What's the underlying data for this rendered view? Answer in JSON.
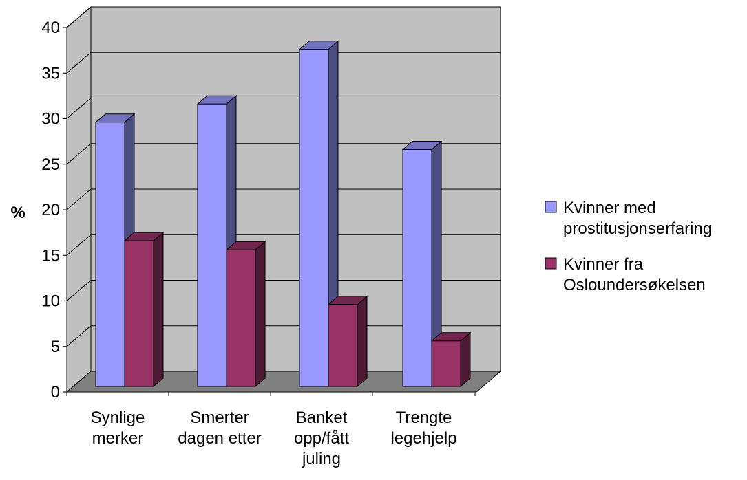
{
  "chart_data": {
    "type": "bar",
    "ylabel": "%",
    "ylim": [
      0,
      40
    ],
    "yticks": [
      0,
      5,
      10,
      15,
      20,
      25,
      30,
      35,
      40
    ],
    "categories": [
      [
        "Synlige",
        "merker"
      ],
      [
        "Smerter",
        "dagen etter"
      ],
      [
        "Banket",
        "opp/fått",
        "juling"
      ],
      [
        "Trengte",
        "legehjelp"
      ]
    ],
    "series": [
      {
        "name": [
          "Kvinner med",
          "prostitusjonserfaring"
        ],
        "values": [
          29,
          31,
          37,
          26
        ]
      },
      {
        "name": [
          "Kvinner fra",
          "Osloundersøkelsen"
        ],
        "values": [
          16,
          15,
          9,
          5
        ]
      }
    ],
    "grid": true,
    "three_d": true,
    "legend_position": "right",
    "colors": {
      "wall": "#c0c0c0",
      "floor": "#808080",
      "series": [
        {
          "front": "#9999ff",
          "side": "#4d4d80",
          "top": "#7373bf"
        },
        {
          "front": "#993366",
          "side": "#4d1a33",
          "top": "#73264d"
        }
      ]
    }
  }
}
